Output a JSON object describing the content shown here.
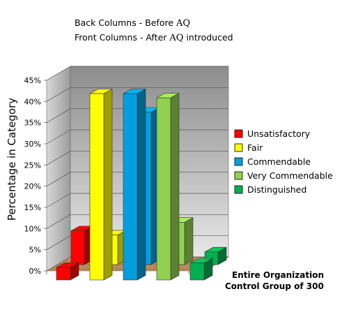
{
  "chart_data": {
    "type": "bar",
    "subtitle_lines": [
      {
        "text": "Back Columns - Before ",
        "symbol": "AQ",
        "suffix": ""
      },
      {
        "text": "Front Columns - After ",
        "symbol": "AQ",
        "suffix": " introduced"
      }
    ],
    "ylabel": "Percentage in Category",
    "xlabel_lines": [
      "Entire Organization",
      "Control Group of 300"
    ],
    "ylim": [
      0,
      45
    ],
    "yticks": [
      "0%",
      "5%",
      "10%",
      "15%",
      "20%",
      "25%",
      "30%",
      "35%",
      "40%",
      "45%"
    ],
    "categories": [
      "Unsatisfactory",
      "Fair",
      "Commendable",
      "Very Commendable",
      "Distinguished"
    ],
    "colors": [
      "#ff0000",
      "#ffff00",
      "#00a0e0",
      "#92d050",
      "#00b050"
    ],
    "series": [
      {
        "name": "Back Columns - Before AQ",
        "values": [
          8,
          7,
          36,
          10,
          3
        ]
      },
      {
        "name": "Front Columns - After AQ introduced",
        "values": [
          3,
          44,
          44,
          43,
          4
        ]
      }
    ],
    "grid": true,
    "legend_position": "right"
  }
}
